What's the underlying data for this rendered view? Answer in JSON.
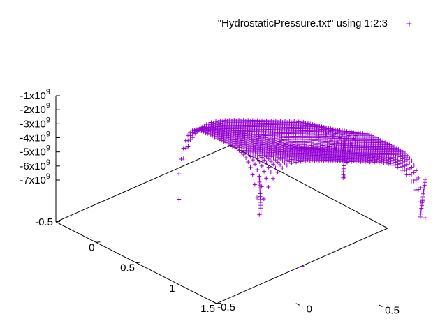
{
  "chart_data": {
    "type": "scatter",
    "subtype": "3d-scatter",
    "marker": "+",
    "color": "#9400d3",
    "legend": {
      "label": "\"HydrostaticPressure.txt\" using 1:2:3",
      "position": "top-right"
    },
    "x_axis": {
      "range": [
        -0.5,
        1.5
      ],
      "ticks": [
        {
          "value": -0.5,
          "label": "-0.5"
        },
        {
          "value": 0,
          "label": "0"
        },
        {
          "value": 0.5,
          "label": "0.5"
        },
        {
          "value": 1,
          "label": "1"
        },
        {
          "value": 1.5,
          "label": "1.5"
        }
      ]
    },
    "y_axis": {
      "range": [
        -0.5,
        1.5
      ],
      "ticks": [
        {
          "value": -0.5,
          "label": "-0.5"
        },
        {
          "value": 0,
          "label": "0"
        },
        {
          "value": 0.5,
          "label": "0.5"
        },
        {
          "value": 1,
          "label": "1"
        },
        {
          "value": 1.5,
          "label": "1.5"
        }
      ]
    },
    "z_axis": {
      "range": [
        -7000000000,
        -1000000000
      ],
      "ticks": [
        {
          "value": -1000000000,
          "base": "-1x10",
          "exp": "9"
        },
        {
          "value": -2000000000,
          "base": "-2x10",
          "exp": "9"
        },
        {
          "value": -3000000000,
          "base": "-3x10",
          "exp": "9"
        },
        {
          "value": -4000000000,
          "base": "-4x10",
          "exp": "9"
        },
        {
          "value": -5000000000,
          "base": "-5x10",
          "exp": "9"
        },
        {
          "value": -6000000000,
          "base": "-6x10",
          "exp": "9"
        },
        {
          "value": -7000000000,
          "base": "-7x10",
          "exp": "9"
        }
      ]
    },
    "surface": {
      "domain_x": [
        0,
        1
      ],
      "domain_y": [
        0,
        1
      ],
      "z_edge": -1100000000,
      "z_corner_dip": -5000000000,
      "z_center_dip": -1500000000
    },
    "outliers": [
      {
        "x": 0,
        "y": 0,
        "z": -6800000000
      },
      {
        "x": 0.5,
        "y": 0.5,
        "z": -10000000000
      }
    ]
  }
}
